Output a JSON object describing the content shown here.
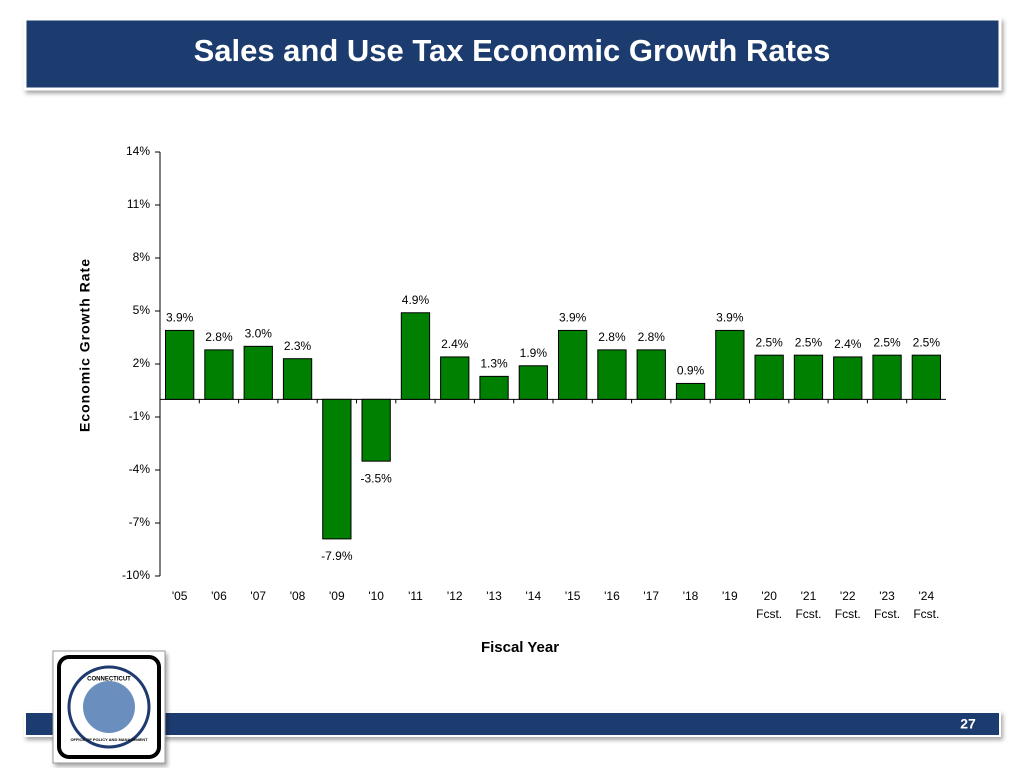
{
  "slide": {
    "page_number": "27",
    "logo_top": "CONNECTICUT",
    "logo_bottom": "OFFICE OF POLICY AND MANAGEMENT"
  },
  "chart_data": {
    "type": "bar",
    "title": "Sales and Use Tax Economic Growth Rates",
    "x_label": "Fiscal Year",
    "y_label": "Economic Growth Rate",
    "categories": [
      [
        "'05"
      ],
      [
        "'06"
      ],
      [
        "'07"
      ],
      [
        "'08"
      ],
      [
        "'09"
      ],
      [
        "'10"
      ],
      [
        "'11"
      ],
      [
        "'12"
      ],
      [
        "'13"
      ],
      [
        "'14"
      ],
      [
        "'15"
      ],
      [
        "'16"
      ],
      [
        "'17"
      ],
      [
        "'18"
      ],
      [
        "'19"
      ],
      [
        "'20",
        "Fcst."
      ],
      [
        "'21",
        "Fcst."
      ],
      [
        "'22",
        "Fcst."
      ],
      [
        "'23",
        "Fcst."
      ],
      [
        "'24",
        "Fcst."
      ]
    ],
    "values": [
      3.9,
      2.8,
      3.0,
      2.3,
      -7.9,
      -3.5,
      4.9,
      2.4,
      1.3,
      1.9,
      3.9,
      2.8,
      2.8,
      0.9,
      3.9,
      2.5,
      2.5,
      2.4,
      2.5,
      2.5
    ],
    "value_labels": [
      "3.9%",
      "2.8%",
      "3.0%",
      "2.3%",
      "-7.9%",
      "-3.5%",
      "4.9%",
      "2.4%",
      "1.3%",
      "1.9%",
      "3.9%",
      "2.8%",
      "2.8%",
      "0.9%",
      "3.9%",
      "2.5%",
      "2.5%",
      "2.4%",
      "2.5%",
      "2.5%"
    ],
    "color": "#008000",
    "ylim": [
      -10,
      14
    ],
    "yticks": [
      {
        "value": -10,
        "label": "-10%"
      },
      {
        "value": -7,
        "label": "-7%"
      },
      {
        "value": -4,
        "label": "-4%"
      },
      {
        "value": -1,
        "label": "-1%"
      },
      {
        "value": 2,
        "label": "2%"
      },
      {
        "value": 5,
        "label": "5%"
      },
      {
        "value": 8,
        "label": "8%"
      },
      {
        "value": 11,
        "label": "11%"
      },
      {
        "value": 14,
        "label": "14%"
      }
    ],
    "grid": false
  }
}
